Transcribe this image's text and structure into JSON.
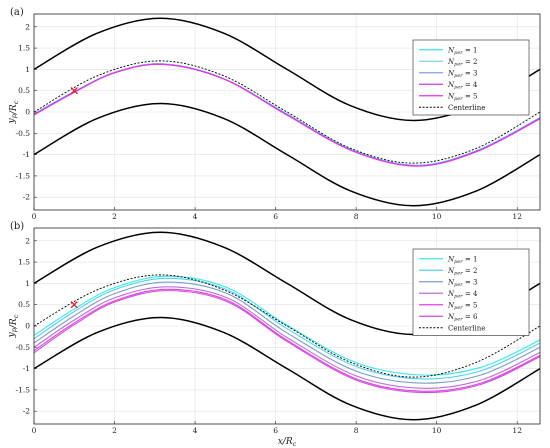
{
  "chart_data": [
    {
      "type": "line",
      "panel_label": "(a)",
      "xlabel": "",
      "ylabel": "y_p/R_c",
      "xlim": [
        0,
        12.566
      ],
      "ylim": [
        -2.3,
        2.3
      ],
      "xticks": [
        0,
        2,
        4,
        6,
        8,
        10,
        12
      ],
      "yticks": [
        -2,
        -1.5,
        -1,
        -0.5,
        0,
        0.5,
        1,
        1.5,
        2
      ],
      "xtick_labels": [
        "0",
        "2",
        "4",
        "6",
        "8",
        "10",
        "12"
      ],
      "ytick_labels": [
        "-2",
        "-1.5",
        "-1",
        "-0.5",
        "0",
        "0.5",
        "1",
        "1.5",
        "2"
      ],
      "grid": true,
      "legend_position": "top-right",
      "walls": {
        "formula": "1.2*sin(x/2) +/- 1",
        "color": "#000000",
        "upper": {
          "x": [
            0,
            1.571,
            3.142,
            4.712,
            6.283,
            7.854,
            9.425,
            10.996,
            12.566
          ],
          "y": [
            1,
            1.849,
            2.2,
            1.849,
            1,
            0.151,
            -0.2,
            0.151,
            1
          ]
        },
        "lower": {
          "x": [
            0,
            1.571,
            3.142,
            4.712,
            6.283,
            7.854,
            9.425,
            10.996,
            12.566
          ],
          "y": [
            -1,
            -0.151,
            0.2,
            -0.151,
            -1,
            -1.849,
            -2.2,
            -1.849,
            -1
          ]
        }
      },
      "centerline": {
        "name": "Centerline",
        "x": [
          0,
          1.571,
          3.142,
          4.712,
          6.283,
          7.854,
          9.425,
          10.996,
          12.566
        ],
        "y": [
          0,
          0.849,
          1.2,
          0.849,
          0,
          -0.849,
          -1.2,
          -0.849,
          0
        ]
      },
      "marker": {
        "x": 1,
        "y": 0.5,
        "symbol": "x",
        "color": "#e8202a"
      },
      "series": [
        {
          "name": "N_per = 1",
          "name_main": "N",
          "name_sub": "per",
          "name_rest": " = 1",
          "color": "#36e8ee",
          "x": [
            0,
            1,
            2,
            3.2,
            4.7,
            6.28,
            7.9,
            9.5,
            11,
            12.566
          ],
          "y": [
            -0.04,
            0.48,
            0.93,
            1.13,
            0.79,
            -0.04,
            -0.89,
            -1.25,
            -0.9,
            -0.13
          ]
        },
        {
          "name": "N_per = 2",
          "name_main": "N",
          "name_sub": "per",
          "name_rest": " = 2",
          "color": "#7ad0e6",
          "x": [
            0,
            1,
            2,
            3.2,
            4.7,
            6.28,
            7.9,
            9.5,
            11,
            12.566
          ],
          "y": [
            -0.05,
            0.47,
            0.93,
            1.13,
            0.79,
            -0.05,
            -0.9,
            -1.26,
            -0.91,
            -0.14
          ]
        },
        {
          "name": "N_per = 3",
          "name_main": "N",
          "name_sub": "per",
          "name_rest": " = 3",
          "color": "#8a9be8",
          "x": [
            0,
            1,
            2,
            3.2,
            4.7,
            6.28,
            7.9,
            9.5,
            11,
            12.566
          ],
          "y": [
            -0.06,
            0.47,
            0.92,
            1.12,
            0.78,
            -0.06,
            -0.9,
            -1.26,
            -0.92,
            -0.15
          ]
        },
        {
          "name": "N_per = 4",
          "name_main": "N",
          "name_sub": "per",
          "name_rest": " = 4",
          "color": "#c43ce6",
          "x": [
            0,
            1,
            2,
            3.2,
            4.7,
            6.28,
            7.9,
            9.5,
            11,
            12.566
          ],
          "y": [
            -0.06,
            0.47,
            0.92,
            1.12,
            0.78,
            -0.06,
            -0.91,
            -1.27,
            -0.92,
            -0.15
          ]
        },
        {
          "name": "N_per = 5",
          "name_main": "N",
          "name_sub": "per",
          "name_rest": " = 5",
          "color": "#ee2ee6",
          "x": [
            0,
            1,
            2,
            3.2,
            4.7,
            6.28,
            7.9,
            9.5,
            11,
            12.566
          ],
          "y": [
            -0.07,
            0.46,
            0.92,
            1.12,
            0.78,
            -0.07,
            -0.91,
            -1.27,
            -0.93,
            -0.16
          ]
        }
      ]
    },
    {
      "type": "line",
      "panel_label": "(b)",
      "xlabel": "x/R_c",
      "ylabel": "y_p/R_c",
      "xlim": [
        0,
        12.566
      ],
      "ylim": [
        -2.3,
        2.3
      ],
      "xticks": [
        0,
        2,
        4,
        6,
        8,
        10,
        12
      ],
      "yticks": [
        -2,
        -1.5,
        -1,
        -0.5,
        0,
        0.5,
        1,
        1.5,
        2
      ],
      "xtick_labels": [
        "0",
        "2",
        "4",
        "6",
        "8",
        "10",
        "12"
      ],
      "ytick_labels": [
        "-2",
        "-1.5",
        "-1",
        "-0.5",
        "0",
        "0.5",
        "1",
        "1.5",
        "2"
      ],
      "grid": true,
      "legend_position": "top-right",
      "walls": {
        "formula": "1.2*sin(x/2) +/- 1",
        "color": "#000000",
        "upper": {
          "x": [
            0,
            1.571,
            3.142,
            4.712,
            6.283,
            7.854,
            9.425,
            10.996,
            12.566
          ],
          "y": [
            1,
            1.849,
            2.2,
            1.849,
            1,
            0.151,
            -0.2,
            0.151,
            1
          ]
        },
        "lower": {
          "x": [
            0,
            1.571,
            3.142,
            4.712,
            6.283,
            7.854,
            9.425,
            10.996,
            12.566
          ],
          "y": [
            -1,
            -0.151,
            0.2,
            -0.151,
            -1,
            -1.849,
            -2.2,
            -1.849,
            -1
          ]
        }
      },
      "centerline": {
        "name": "Centerline",
        "x": [
          0,
          1.571,
          3.142,
          4.712,
          6.283,
          7.854,
          9.425,
          10.996,
          12.566
        ],
        "y": [
          0,
          0.849,
          1.2,
          0.849,
          0,
          -0.849,
          -1.2,
          -0.849,
          0
        ]
      },
      "marker": {
        "x": 1,
        "y": 0.5,
        "symbol": "x",
        "color": "#e8202a"
      },
      "series": [
        {
          "name": "N_per = 1",
          "name_main": "N",
          "name_sub": "per",
          "name_rest": " = 1",
          "color": "#36e8ee",
          "x": [
            0,
            1,
            2,
            3.3,
            4.8,
            6.28,
            8,
            9.6,
            11.1,
            12.566
          ],
          "y": [
            -0.22,
            0.4,
            0.9,
            1.17,
            0.9,
            0.02,
            -0.86,
            -1.15,
            -0.97,
            -0.33
          ]
        },
        {
          "name": "N_per = 2",
          "name_main": "N",
          "name_sub": "per",
          "name_rest": " = 2",
          "color": "#4fd4ea",
          "x": [
            0,
            1,
            2,
            3.3,
            4.8,
            6.28,
            8,
            9.6,
            11.1,
            12.566
          ],
          "y": [
            -0.3,
            0.34,
            0.85,
            1.12,
            0.85,
            -0.06,
            -0.95,
            -1.24,
            -1.05,
            -0.4
          ]
        },
        {
          "name": "N_per = 3",
          "name_main": "N",
          "name_sub": "per",
          "name_rest": " = 3",
          "color": "#7a9ccc",
          "x": [
            0,
            1,
            2,
            3.3,
            4.8,
            6.28,
            8,
            9.6,
            11.1,
            12.566
          ],
          "y": [
            -0.4,
            0.24,
            0.76,
            1.03,
            0.76,
            -0.16,
            -1.06,
            -1.34,
            -1.15,
            -0.5
          ]
        },
        {
          "name": "N_per = 4",
          "name_main": "N",
          "name_sub": "per",
          "name_rest": " = 4",
          "color": "#c06ed4",
          "x": [
            0,
            1,
            2,
            3.3,
            4.8,
            6.28,
            8,
            9.6,
            11.1,
            12.566
          ],
          "y": [
            -0.5,
            0.14,
            0.66,
            0.92,
            0.66,
            -0.27,
            -1.17,
            -1.46,
            -1.27,
            -0.62
          ]
        },
        {
          "name": "N_per = 5",
          "name_main": "N",
          "name_sub": "per",
          "name_rest": " = 5",
          "color": "#e83ee2",
          "x": [
            0,
            1,
            2,
            3.3,
            4.8,
            6.28,
            8,
            9.6,
            11.1,
            12.566
          ],
          "y": [
            -0.58,
            0.07,
            0.59,
            0.86,
            0.6,
            -0.33,
            -1.24,
            -1.53,
            -1.34,
            -0.69
          ]
        },
        {
          "name": "N_per = 6",
          "name_main": "N",
          "name_sub": "per",
          "name_rest": " = 6",
          "color": "#cc4ee8",
          "x": [
            0,
            1,
            2,
            3.3,
            4.8,
            6.28,
            8,
            9.6,
            11.1,
            12.566
          ],
          "y": [
            -0.63,
            0.03,
            0.56,
            0.83,
            0.57,
            -0.36,
            -1.27,
            -1.56,
            -1.37,
            -0.72
          ]
        }
      ]
    }
  ]
}
